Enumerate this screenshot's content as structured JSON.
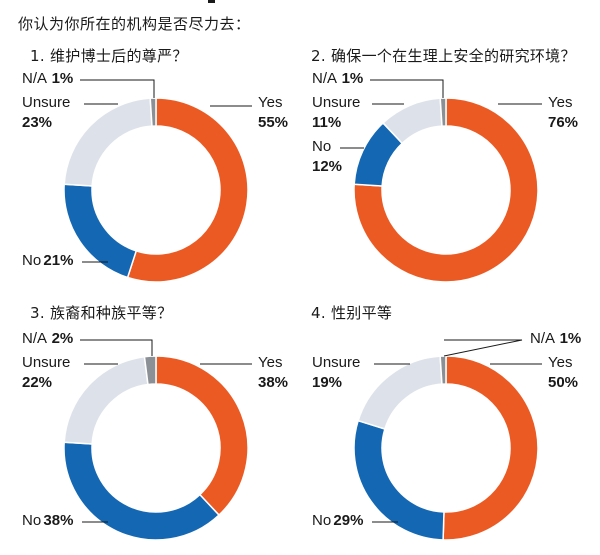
{
  "title": "你认为你所在的机构是否尽力去：",
  "colors": {
    "Yes": "#ec5a24",
    "No": "#1467b3",
    "Unsure": "#dde2ea",
    "N/A": "#8b9096",
    "leader": "#1a1a1a"
  },
  "chart_data": [
    {
      "type": "pie",
      "title": "1. 维护博士后的尊严？",
      "slices": [
        {
          "label": "Yes",
          "value": 55,
          "text": "55%"
        },
        {
          "label": "No",
          "value": 21,
          "text": "21%"
        },
        {
          "label": "Unsure",
          "value": 23,
          "text": "23%"
        },
        {
          "label": "N/A",
          "value": 1,
          "text": "1%"
        }
      ]
    },
    {
      "type": "pie",
      "title": "2. 确保一个在生理上安全的研究环境？",
      "slices": [
        {
          "label": "Yes",
          "value": 76,
          "text": "76%"
        },
        {
          "label": "No",
          "value": 12,
          "text": "12%"
        },
        {
          "label": "Unsure",
          "value": 11,
          "text": "11%"
        },
        {
          "label": "N/A",
          "value": 1,
          "text": "1%"
        }
      ]
    },
    {
      "type": "pie",
      "title": "3. 族裔和种族平等？",
      "slices": [
        {
          "label": "Yes",
          "value": 38,
          "text": "38%"
        },
        {
          "label": "No",
          "value": 38,
          "text": "38%"
        },
        {
          "label": "Unsure",
          "value": 22,
          "text": "22%"
        },
        {
          "label": "N/A",
          "value": 2,
          "text": "2%"
        }
      ]
    },
    {
      "type": "pie",
      "title": "4. 性别平等",
      "slices": [
        {
          "label": "Yes",
          "value": 50,
          "text": "50%"
        },
        {
          "label": "No",
          "value": 29,
          "text": "29%"
        },
        {
          "label": "Unsure",
          "value": 19,
          "text": "19%"
        },
        {
          "label": "N/A",
          "value": 1,
          "text": "1%"
        }
      ]
    }
  ]
}
